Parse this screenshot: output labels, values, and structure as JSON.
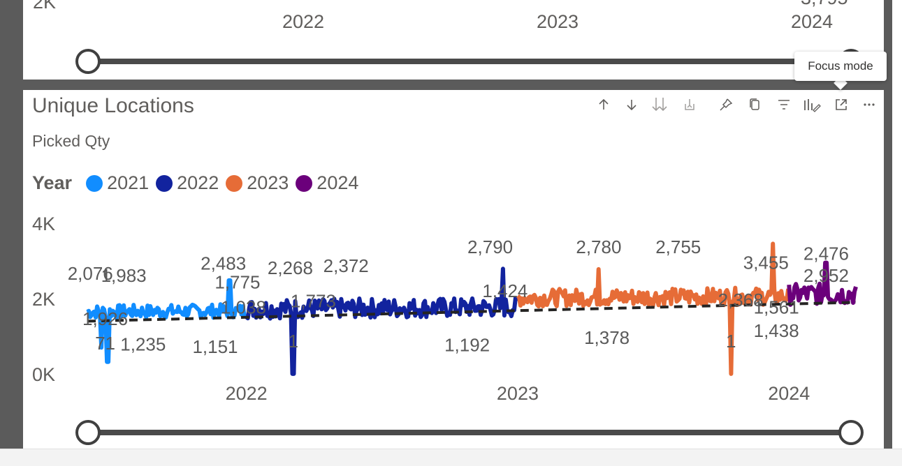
{
  "top_visual": {
    "y_tick_partial": "2K",
    "value_label_partial": "3,795",
    "year_ticks": [
      "2022",
      "2023",
      "2024"
    ]
  },
  "main_visual": {
    "title": "Unique Locations",
    "subtitle": "Picked Qty",
    "legend": {
      "title": "Year",
      "items": [
        {
          "label": "2021",
          "color": "#118dff"
        },
        {
          "label": "2022",
          "color": "#12239e"
        },
        {
          "label": "2023",
          "color": "#e66c37"
        },
        {
          "label": "2024",
          "color": "#6b007b"
        }
      ]
    },
    "toolbar": {
      "icons": [
        "drill-up-icon",
        "drill-down-icon",
        "expand-next-level-icon",
        "expand-hierarchy-icon",
        "pin-icon",
        "copy-icon",
        "filter-icon",
        "format-visual-icon",
        "focus-mode-icon",
        "more-options-icon"
      ]
    },
    "tooltip": "Focus mode"
  },
  "chart_data": {
    "type": "line",
    "title": "Unique Locations",
    "subtitle": "Picked Qty",
    "ylim": [
      0,
      4000
    ],
    "y_ticks": [
      "4K",
      "2K",
      "0K"
    ],
    "x_ticks": [
      "2022",
      "2023",
      "2024"
    ],
    "grid": false,
    "legend_position": "top-left",
    "trend_line": {
      "style": "dashed",
      "color": "#252423",
      "start": 1400,
      "end": 1900
    },
    "series": [
      {
        "name": "2021",
        "color": "#118dff",
        "x_start": "2021-06",
        "x_end": "2021-12",
        "base": 1650,
        "amp": 180,
        "dips": [
          {
            "x": "2021-06-20",
            "y": 700
          },
          {
            "x": "2021-06-28",
            "y": 320
          }
        ],
        "spikes": [
          {
            "x": "2021-12-10",
            "y": 2483
          }
        ]
      },
      {
        "name": "2022",
        "color": "#12239e",
        "x_start": "2022-01",
        "x_end": "2022-12",
        "base": 1700,
        "amp": 260,
        "dips": [
          {
            "x": "2022-03-05",
            "y": 1
          }
        ],
        "spikes": [
          {
            "x": "2022-12-12",
            "y": 2790
          }
        ]
      },
      {
        "name": "2023",
        "color": "#e66c37",
        "x_start": "2023-01",
        "x_end": "2023-12",
        "base": 1950,
        "amp": 230,
        "dips": [
          {
            "x": "2023-10-15",
            "y": 1
          }
        ],
        "spikes": [
          {
            "x": "2023-12-10",
            "y": 3455
          },
          {
            "x": "2023-04-20",
            "y": 2780
          }
        ]
      },
      {
        "name": "2024",
        "color": "#6b007b",
        "x_start": "2024-01",
        "x_end": "2024-03",
        "base": 2000,
        "amp": 280,
        "dips": [],
        "spikes": [
          {
            "x": "2024-02-20",
            "y": 2952
          }
        ]
      }
    ],
    "data_labels": [
      {
        "text": "2,076",
        "x": "2021-06-05",
        "y": 2500
      },
      {
        "text": "1,983",
        "x": "2021-07-20",
        "y": 2440
      },
      {
        "text": "2,483",
        "x": "2021-12-01",
        "y": 2770
      },
      {
        "text": "1,775",
        "x": "2021-12-20",
        "y": 2270
      },
      {
        "text": "1,926",
        "x": "2021-06-25",
        "y": 1300
      },
      {
        "text": "71",
        "x": "2021-06-25",
        "y": 650
      },
      {
        "text": "1,235",
        "x": "2021-08-15",
        "y": 620
      },
      {
        "text": "1,151",
        "x": "2021-11-20",
        "y": 560
      },
      {
        "text": "1,038",
        "x": "2021-12-28",
        "y": 1600
      },
      {
        "text": "2,268",
        "x": "2022-03-01",
        "y": 2650
      },
      {
        "text": "1,773",
        "x": "2022-04-01",
        "y": 1770
      },
      {
        "text": "1",
        "x": "2022-03-05",
        "y": 700
      },
      {
        "text": "2,372",
        "x": "2022-05-15",
        "y": 2700
      },
      {
        "text": "2,790",
        "x": "2022-11-25",
        "y": 3200
      },
      {
        "text": "1,424",
        "x": "2022-12-15",
        "y": 2040
      },
      {
        "text": "1,192",
        "x": "2022-10-25",
        "y": 600
      },
      {
        "text": "2,780",
        "x": "2023-04-20",
        "y": 3200
      },
      {
        "text": "1,378",
        "x": "2023-05-01",
        "y": 800
      },
      {
        "text": "2,755",
        "x": "2023-08-05",
        "y": 3200
      },
      {
        "text": "2,368",
        "x": "2023-10-28",
        "y": 1800
      },
      {
        "text": "1",
        "x": "2023-10-15",
        "y": 700
      },
      {
        "text": "3,455",
        "x": "2023-12-01",
        "y": 2790
      },
      {
        "text": "1,561",
        "x": "2023-12-15",
        "y": 1600
      },
      {
        "text": "1,438",
        "x": "2023-12-15",
        "y": 980
      },
      {
        "text": "2,476",
        "x": "2024-02-20",
        "y": 3030
      },
      {
        "text": "2,952",
        "x": "2024-02-20",
        "y": 2440
      }
    ]
  }
}
